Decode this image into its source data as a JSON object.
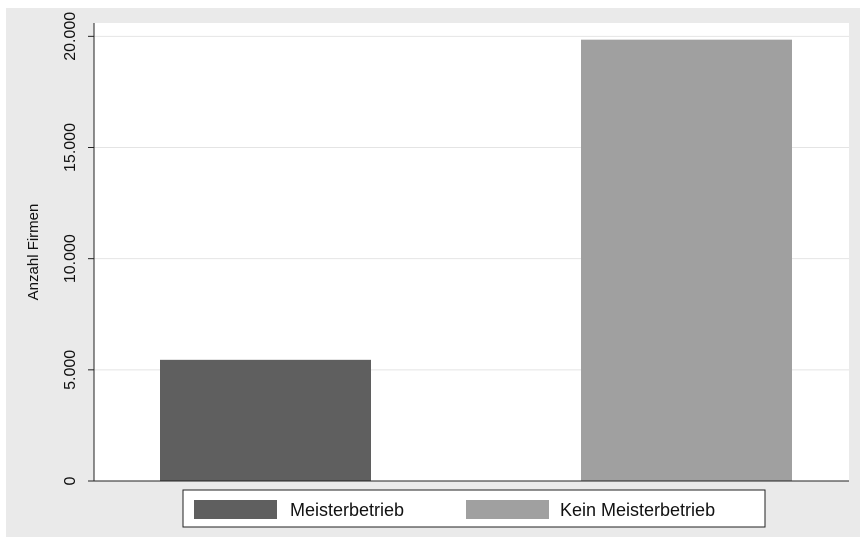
{
  "chart_data": {
    "type": "bar",
    "categories": [
      "Meisterbetrieb",
      "Kein Meisterbetrieb"
    ],
    "values": [
      5450,
      19850
    ],
    "title": "",
    "xlabel": "",
    "ylabel": "Anzahl Firmen",
    "ylim": [
      0,
      20000
    ],
    "yticks": [
      0,
      5000,
      10000,
      15000,
      20000
    ],
    "ytick_labels": [
      "0",
      "5.000",
      "10.000",
      "15.000",
      "20.000"
    ],
    "grid": true,
    "legend": {
      "placement": "bottom",
      "entries": [
        "Meisterbetrieb",
        "Kein Meisterbetrieb"
      ]
    },
    "colors": {
      "outer_background": "#eaeaea",
      "plot_background": "#ffffff",
      "gridline": "#e4e4e4",
      "bars": [
        "#5f5f5f",
        "#a0a0a0"
      ]
    }
  }
}
